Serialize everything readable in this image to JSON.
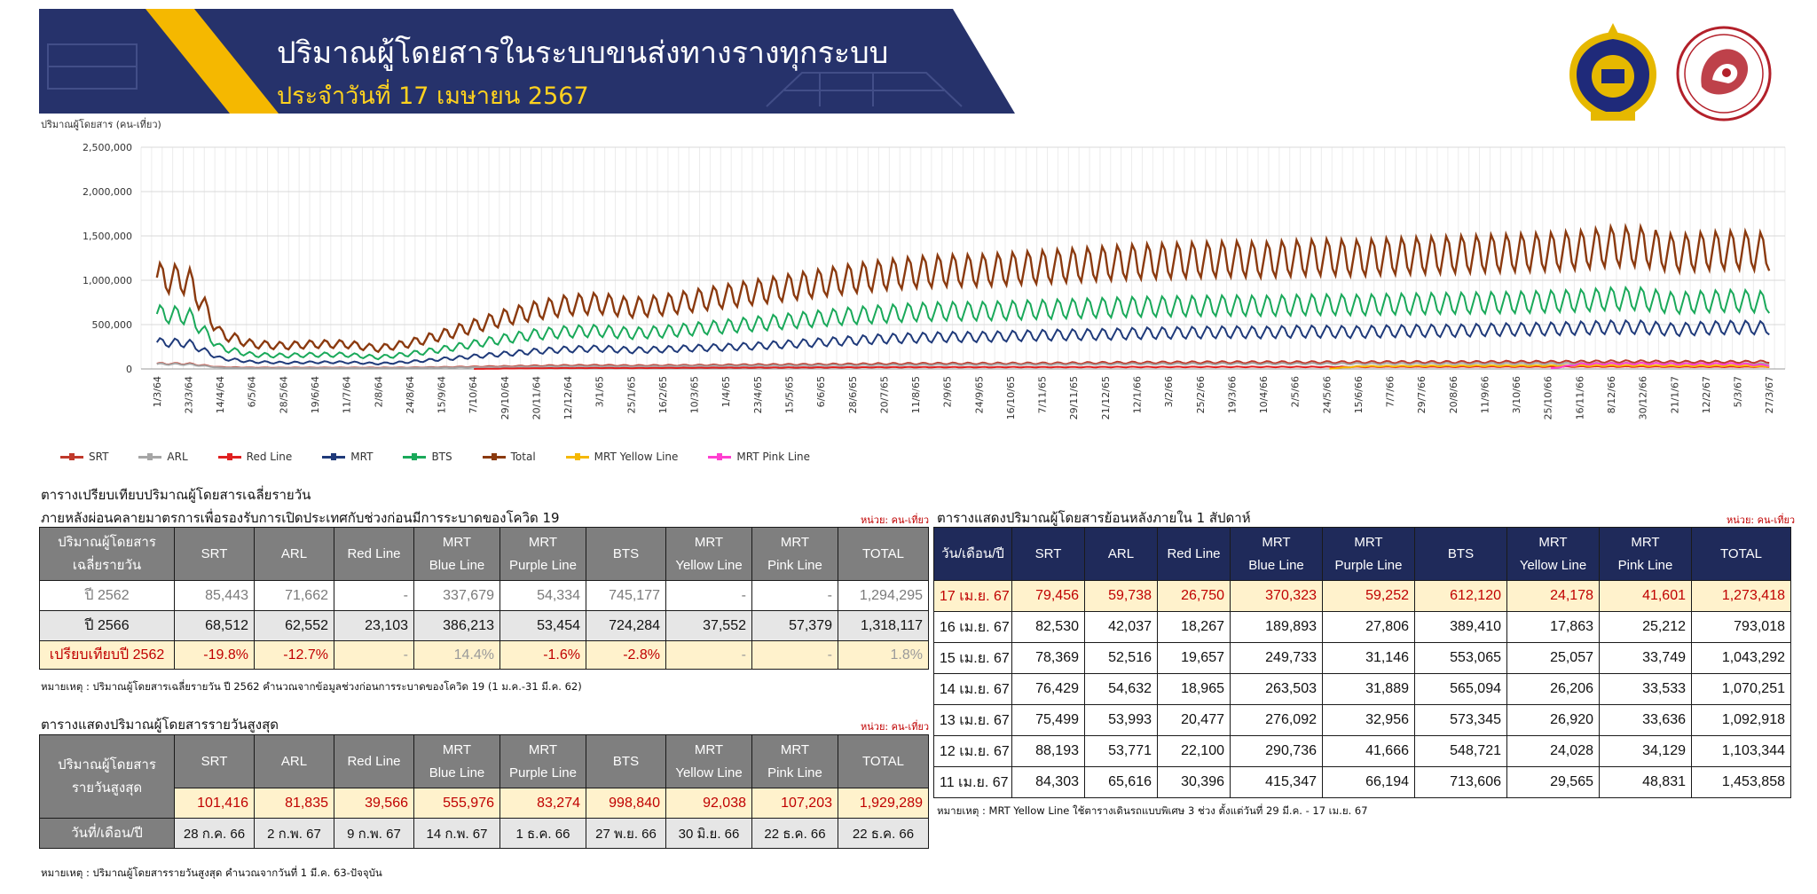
{
  "header": {
    "title": "ปริมาณผู้โดยสารในระบบขนส่งทางรางทุกระบบ",
    "subtitle": "ประจำวันที่ 17 เมษายน 2567"
  },
  "colors": {
    "banner": "#26326b",
    "accent": "#f5b800",
    "highlight_row": "#fff2cc",
    "red_text": "#c00000",
    "header_gray": "#7f7f7f",
    "header_navy": "#1f2a5a"
  },
  "chart_data": {
    "type": "line",
    "ylabel": "ปริมาณผู้โดยสาร (คน-เที่ยว)",
    "ylim": [
      0,
      2500000
    ],
    "yticks": [
      0,
      500000,
      1000000,
      1500000,
      2000000,
      2500000
    ],
    "ytick_labels": [
      "0",
      "500,000",
      "1,000,000",
      "1,500,000",
      "2,000,000",
      "2,500,000"
    ],
    "x_ticks": [
      "1/3/64",
      "23/3/64",
      "14/4/64",
      "6/5/64",
      "28/5/64",
      "19/6/64",
      "11/7/64",
      "2/8/64",
      "24/8/64",
      "15/9/64",
      "7/10/64",
      "29/10/64",
      "20/11/64",
      "12/12/64",
      "3/1/65",
      "25/1/65",
      "16/2/65",
      "10/3/65",
      "1/4/65",
      "23/4/65",
      "15/5/65",
      "6/6/65",
      "28/6/65",
      "20/7/65",
      "11/8/65",
      "2/9/65",
      "24/9/65",
      "16/10/65",
      "7/11/65",
      "29/11/65",
      "21/12/65",
      "12/1/66",
      "3/2/66",
      "25/2/66",
      "19/3/66",
      "10/4/66",
      "2/5/66",
      "24/5/66",
      "15/6/66",
      "7/7/66",
      "29/7/66",
      "20/8/66",
      "11/9/66",
      "3/10/66",
      "25/10/66",
      "16/11/66",
      "8/12/66",
      "30/12/66",
      "21/1/67",
      "12/2/67",
      "5/3/67",
      "27/3/67"
    ],
    "grid": true,
    "legend_position": "bottom",
    "series": [
      {
        "name": "SRT",
        "color": "#c0392b",
        "values": [
          60000,
          58000,
          20000,
          15000,
          14000,
          15000,
          15000,
          14000,
          16000,
          20000,
          25000,
          30000,
          36000,
          40000,
          42000,
          38000,
          40000,
          42000,
          45000,
          48000,
          50000,
          52000,
          55000,
          58000,
          60000,
          62000,
          62000,
          63000,
          64000,
          66000,
          70000,
          72000,
          74000,
          75000,
          76000,
          76000,
          76000,
          77000,
          77000,
          78000,
          78000,
          78000,
          79000,
          80000,
          80000,
          82000,
          84000,
          84000,
          80000,
          80000,
          80000,
          82000
        ]
      },
      {
        "name": "ARL",
        "color": "#a6a6a6",
        "values": [
          55000,
          52000,
          15000,
          10000,
          10000,
          11000,
          11000,
          10000,
          12000,
          15000,
          18000,
          22000,
          26000,
          30000,
          30000,
          28000,
          30000,
          32000,
          34000,
          36000,
          38000,
          40000,
          42000,
          44000,
          46000,
          48000,
          48000,
          50000,
          50000,
          52000,
          54000,
          55000,
          56000,
          57000,
          58000,
          58000,
          58000,
          58000,
          58000,
          59000,
          59000,
          59000,
          60000,
          60000,
          60000,
          61000,
          62000,
          62000,
          60000,
          58000,
          58000,
          58000
        ]
      },
      {
        "name": "Red Line",
        "color": "#e02020",
        "values": [
          0,
          0,
          0,
          0,
          0,
          0,
          0,
          0,
          0,
          0,
          0,
          5000,
          8000,
          10000,
          11000,
          10000,
          12000,
          13000,
          14000,
          15000,
          16000,
          17000,
          18000,
          19000,
          20000,
          20000,
          20000,
          21000,
          21000,
          21000,
          22000,
          22000,
          22000,
          23000,
          23000,
          23000,
          23000,
          23000,
          23000,
          24000,
          24000,
          24000,
          25000,
          25000,
          25000,
          26000,
          26000,
          26000,
          24000,
          24000,
          24000,
          24000
        ]
      },
      {
        "name": "MRT",
        "color": "#1f3a7a",
        "values": [
          300000,
          290000,
          120000,
          80000,
          70000,
          75000,
          75000,
          60000,
          80000,
          110000,
          140000,
          170000,
          200000,
          220000,
          230000,
          210000,
          220000,
          235000,
          245000,
          260000,
          280000,
          300000,
          320000,
          340000,
          350000,
          360000,
          360000,
          370000,
          380000,
          385000,
          390000,
          400000,
          405000,
          410000,
          415000,
          410000,
          420000,
          420000,
          415000,
          425000,
          430000,
          430000,
          440000,
          445000,
          450000,
          460000,
          470000,
          470000,
          440000,
          460000,
          470000,
          460000
        ]
      },
      {
        "name": "BTS",
        "color": "#1aa95a",
        "values": [
          620000,
          600000,
          240000,
          160000,
          150000,
          160000,
          160000,
          130000,
          170000,
          220000,
          280000,
          340000,
          390000,
          420000,
          430000,
          400000,
          420000,
          450000,
          480000,
          510000,
          540000,
          570000,
          600000,
          620000,
          640000,
          650000,
          650000,
          660000,
          670000,
          680000,
          690000,
          700000,
          705000,
          710000,
          715000,
          710000,
          720000,
          725000,
          720000,
          730000,
          735000,
          740000,
          745000,
          750000,
          760000,
          770000,
          790000,
          790000,
          740000,
          760000,
          770000,
          750000
        ]
      },
      {
        "name": "Total",
        "color": "#8b3a0f",
        "values": [
          1030000,
          1000000,
          400000,
          280000,
          260000,
          280000,
          280000,
          230000,
          290000,
          380000,
          480000,
          580000,
          660000,
          720000,
          740000,
          690000,
          720000,
          770000,
          820000,
          870000,
          920000,
          970000,
          1020000,
          1060000,
          1090000,
          1110000,
          1110000,
          1130000,
          1150000,
          1170000,
          1190000,
          1210000,
          1220000,
          1230000,
          1240000,
          1230000,
          1250000,
          1260000,
          1250000,
          1270000,
          1280000,
          1290000,
          1300000,
          1310000,
          1320000,
          1340000,
          1380000,
          1380000,
          1300000,
          1330000,
          1340000,
          1320000
        ]
      },
      {
        "name": "MRT Yellow Line",
        "color": "#f5b800",
        "values": [
          0,
          0,
          0,
          0,
          0,
          0,
          0,
          0,
          0,
          0,
          0,
          0,
          0,
          0,
          0,
          0,
          0,
          0,
          0,
          0,
          0,
          0,
          0,
          0,
          0,
          0,
          0,
          0,
          0,
          0,
          0,
          0,
          0,
          0,
          0,
          0,
          0,
          0,
          30000,
          32000,
          34000,
          35000,
          36000,
          36000,
          37000,
          37000,
          38000,
          38000,
          35000,
          36000,
          37000,
          26000
        ]
      },
      {
        "name": "MRT Pink Line",
        "color": "#ff3fd0",
        "values": [
          0,
          0,
          0,
          0,
          0,
          0,
          0,
          0,
          0,
          0,
          0,
          0,
          0,
          0,
          0,
          0,
          0,
          0,
          0,
          0,
          0,
          0,
          0,
          0,
          0,
          0,
          0,
          0,
          0,
          0,
          0,
          0,
          0,
          0,
          0,
          0,
          0,
          0,
          0,
          0,
          0,
          0,
          0,
          0,
          0,
          55000,
          58000,
          60000,
          56000,
          57000,
          58000,
          40000
        ]
      }
    ]
  },
  "legend": [
    "SRT",
    "ARL",
    "Red Line",
    "MRT",
    "BTS",
    "Total",
    "MRT Yellow Line",
    "MRT Pink Line"
  ],
  "left": {
    "section_title": "ตารางเปรียบเทียบปริมาณผู้โดยสารเฉลี่ยรายวัน",
    "subtitle": "ภายหลังผ่อนคลายมาตรการเพื่อรองรับการเปิดประเทศกับช่วงก่อนมีการระบาดของโควิด 19",
    "unit": "หน่วย: คน-เที่ยว",
    "head_first": [
      "ปริมาณผู้โดยสาร",
      "เฉลี่ยรายวัน"
    ],
    "head_cols": [
      [
        "SRT"
      ],
      [
        "ARL"
      ],
      [
        "Red Line"
      ],
      [
        "MRT",
        "Blue Line"
      ],
      [
        "MRT",
        "Purple Line"
      ],
      [
        "BTS"
      ],
      [
        "MRT",
        "Yellow Line"
      ],
      [
        "MRT",
        "Pink Line"
      ],
      [
        "TOTAL"
      ]
    ],
    "rows": [
      {
        "label": "ปี 2562",
        "values": [
          "85,443",
          "71,662",
          "-",
          "337,679",
          "54,334",
          "745,177",
          "-",
          "-",
          "1,294,295"
        ]
      },
      {
        "label": "ปี 2566",
        "values": [
          "68,512",
          "62,552",
          "23,103",
          "386,213",
          "53,454",
          "724,284",
          "37,552",
          "57,379",
          "1,318,117"
        ]
      },
      {
        "label": "เปรียบเทียบปี 2562",
        "values": [
          "-19.8%",
          "-12.7%",
          "-",
          "14.4%",
          "-1.6%",
          "-2.8%",
          "-",
          "-",
          "1.8%"
        ]
      }
    ],
    "note": "หมายเหตุ : ปริมาณผู้โดยสารเฉลี่ยรายวัน ปี 2562 คำนวณจากข้อมูลช่วงก่อนการระบาดของโควิด 19 (1 ม.ค.-31 มี.ค. 62)"
  },
  "peak": {
    "section_title": "ตารางแสดงปริมาณผู้โดยสารรายวันสูงสุด",
    "unit": "หน่วย: คน-เที่ยว",
    "head_first": [
      "ปริมาณผู้โดยสาร",
      "รายวันสูงสุด"
    ],
    "head_cols": [
      [
        "SRT"
      ],
      [
        "ARL"
      ],
      [
        "Red Line"
      ],
      [
        "MRT",
        "Blue Line"
      ],
      [
        "MRT",
        "Purple Line"
      ],
      [
        "BTS"
      ],
      [
        "MRT",
        "Yellow Line"
      ],
      [
        "MRT",
        "Pink Line"
      ],
      [
        "TOTAL"
      ]
    ],
    "values": [
      "101,416",
      "81,835",
      "39,566",
      "555,976",
      "83,274",
      "998,840",
      "92,038",
      "107,203",
      "1,929,289"
    ],
    "date_label": "วันที่/เดือน/ปี",
    "dates": [
      "28 ก.ค. 66",
      "2 ก.พ. 67",
      "9 ก.พ. 67",
      "14 ก.พ. 67",
      "1 ธ.ค. 66",
      "27 พ.ย. 66",
      "30 มิ.ย. 66",
      "22 ธ.ค. 66",
      "22 ธ.ค. 66"
    ],
    "note": "หมายเหตุ : ปริมาณผู้โดยสารรายวันสูงสุด คำนวณจากวันที่ 1 มี.ค. 63-ปัจจุบัน"
  },
  "weekly": {
    "section_title": "ตารางแสดงปริมาณผู้โดยสารย้อนหลังภายใน 1 สัปดาห์",
    "unit": "หน่วย: คน-เที่ยว",
    "head_first": "วัน/เดือน/ปี",
    "head_cols": [
      [
        "SRT"
      ],
      [
        "ARL"
      ],
      [
        "Red Line"
      ],
      [
        "MRT",
        "Blue Line"
      ],
      [
        "MRT",
        "Purple Line"
      ],
      [
        "BTS"
      ],
      [
        "MRT",
        "Yellow Line"
      ],
      [
        "MRT",
        "Pink Line"
      ],
      [
        "TOTAL"
      ]
    ],
    "rows": [
      {
        "date": "17 เม.ย. 67",
        "values": [
          "79,456",
          "59,738",
          "26,750",
          "370,323",
          "59,252",
          "612,120",
          "24,178",
          "41,601",
          "1,273,418"
        ]
      },
      {
        "date": "16 เม.ย. 67",
        "values": [
          "82,530",
          "42,037",
          "18,267",
          "189,893",
          "27,806",
          "389,410",
          "17,863",
          "25,212",
          "793,018"
        ]
      },
      {
        "date": "15 เม.ย. 67",
        "values": [
          "78,369",
          "52,516",
          "19,657",
          "249,733",
          "31,146",
          "553,065",
          "25,057",
          "33,749",
          "1,043,292"
        ]
      },
      {
        "date": "14 เม.ย. 67",
        "values": [
          "76,429",
          "54,632",
          "18,965",
          "263,503",
          "31,889",
          "565,094",
          "26,206",
          "33,533",
          "1,070,251"
        ]
      },
      {
        "date": "13 เม.ย. 67",
        "values": [
          "75,499",
          "53,993",
          "20,477",
          "276,092",
          "32,956",
          "573,345",
          "26,920",
          "33,636",
          "1,092,918"
        ]
      },
      {
        "date": "12 เม.ย. 67",
        "values": [
          "88,193",
          "53,771",
          "22,100",
          "290,736",
          "41,666",
          "548,721",
          "24,028",
          "34,129",
          "1,103,344"
        ]
      },
      {
        "date": "11 เม.ย. 67",
        "values": [
          "84,303",
          "65,616",
          "30,396",
          "415,347",
          "66,194",
          "713,606",
          "29,565",
          "48,831",
          "1,453,858"
        ]
      }
    ],
    "note": "หมายเหตุ : MRT Yellow Line ใช้ตารางเดินรถแบบพิเศษ 3 ช่วง ตั้งแต่วันที่ 29 มี.ค. - 17 เม.ย. 67"
  }
}
